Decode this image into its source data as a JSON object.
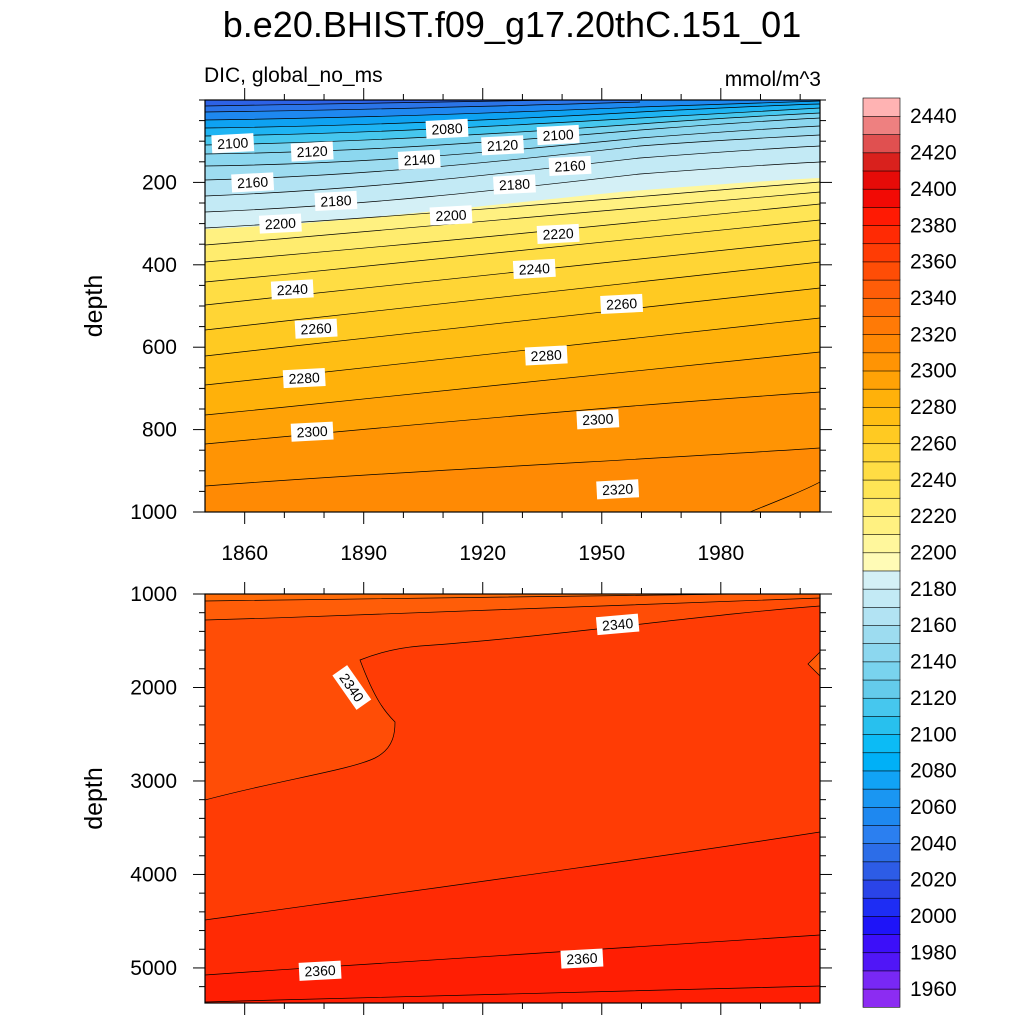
{
  "chart_data": {
    "type": "contour",
    "title": "b.e20.BHIST.f09_g17.20thC.151_01",
    "variable_label": "DIC, global_no_ms",
    "units": "mmol/m^3",
    "x_ticks": [
      1860,
      1890,
      1920,
      1950,
      1980
    ],
    "xlim": [
      1850,
      2005
    ],
    "colorbar": {
      "levels": [
        1960,
        1970,
        1980,
        1990,
        2000,
        2010,
        2020,
        2030,
        2040,
        2050,
        2060,
        2070,
        2080,
        2090,
        2100,
        2110,
        2120,
        2130,
        2140,
        2150,
        2160,
        2170,
        2180,
        2190,
        2200,
        2210,
        2220,
        2230,
        2240,
        2250,
        2260,
        2270,
        2280,
        2290,
        2300,
        2310,
        2320,
        2330,
        2340,
        2350,
        2360,
        2370,
        2380,
        2390,
        2400,
        2410,
        2420,
        2430,
        2440,
        2450
      ],
      "tick_labels": [
        "1960",
        "1980",
        "2000",
        "2020",
        "2040",
        "2060",
        "2080",
        "2100",
        "2120",
        "2140",
        "2160",
        "2180",
        "2200",
        "2220",
        "2240",
        "2260",
        "2280",
        "2300",
        "2320",
        "2340",
        "2360",
        "2380",
        "2400",
        "2420",
        "2440"
      ],
      "colors": [
        "#8c2cf2",
        "#7828f5",
        "#5016f7",
        "#3c0ff9",
        "#1e14f8",
        "#1e2df4",
        "#2a44e8",
        "#2d5ce6",
        "#2c6de8",
        "#2b7ff0",
        "#1e88f0",
        "#1a96f2",
        "#11a3f5",
        "#00b0f7",
        "#0cbbf5",
        "#28c0ee",
        "#46c7ee",
        "#64cbeb",
        "#79d3ee",
        "#8cd7ef",
        "#9ddcf0",
        "#b2e3f3",
        "#c3eaf5",
        "#d4f0f6",
        "#fffbb6",
        "#fff79c",
        "#fff181",
        "#ffec6e",
        "#ffe555",
        "#ffdd44",
        "#ffd535",
        "#ffca22",
        "#ffbe14",
        "#ffb10a",
        "#ffa206",
        "#ff9404",
        "#ff8704",
        "#ff7a06",
        "#ff6c08",
        "#ff5d08",
        "#ff4d06",
        "#ff3c05",
        "#ff2a04",
        "#ff1a03",
        "#f20a05",
        "#e60b08",
        "#d9211d",
        "#e05050",
        "#ee8080",
        "#ffb3b3"
      ]
    },
    "panels": [
      {
        "name": "upper",
        "y_label": "depth",
        "y_ticks": [
          200,
          400,
          600,
          800,
          1000
        ],
        "ylim": [
          0,
          1000
        ],
        "y_reversed": true,
        "contour_labels": [
          {
            "text": "2080",
            "year": 1911,
            "depth": 70
          },
          {
            "text": "2100",
            "year": 1857,
            "depth": 105
          },
          {
            "text": "2100",
            "year": 1939,
            "depth": 85
          },
          {
            "text": "2120",
            "year": 1877,
            "depth": 125
          },
          {
            "text": "2120",
            "year": 1925,
            "depth": 110
          },
          {
            "text": "2140",
            "year": 1904,
            "depth": 145
          },
          {
            "text": "2160",
            "year": 1862,
            "depth": 200
          },
          {
            "text": "2160",
            "year": 1942,
            "depth": 160
          },
          {
            "text": "2180",
            "year": 1883,
            "depth": 245
          },
          {
            "text": "2180",
            "year": 1928,
            "depth": 205
          },
          {
            "text": "2200",
            "year": 1869,
            "depth": 300
          },
          {
            "text": "2200",
            "year": 1912,
            "depth": 280
          },
          {
            "text": "2220",
            "year": 1939,
            "depth": 325
          },
          {
            "text": "2240",
            "year": 1872,
            "depth": 460
          },
          {
            "text": "2240",
            "year": 1933,
            "depth": 410
          },
          {
            "text": "2260",
            "year": 1878,
            "depth": 555
          },
          {
            "text": "2260",
            "year": 1955,
            "depth": 495
          },
          {
            "text": "2280",
            "year": 1875,
            "depth": 675
          },
          {
            "text": "2280",
            "year": 1936,
            "depth": 620
          },
          {
            "text": "2300",
            "year": 1877,
            "depth": 805
          },
          {
            "text": "2300",
            "year": 1949,
            "depth": 775
          },
          {
            "text": "2320",
            "year": 1954,
            "depth": 945
          }
        ]
      },
      {
        "name": "lower",
        "y_label": "depth",
        "y_ticks": [
          1000,
          2000,
          3000,
          4000,
          5000
        ],
        "ylim": [
          1000,
          5375
        ],
        "y_reversed": true,
        "contour_labels": [
          {
            "text": "2340",
            "year": 1954,
            "depth": 1325,
            "angle": -5
          },
          {
            "text": "2340",
            "year": 1887,
            "depth": 2000,
            "angle": 55
          },
          {
            "text": "2360",
            "year": 1879,
            "depth": 5030,
            "angle": -3
          },
          {
            "text": "2360",
            "year": 1945,
            "depth": 4900,
            "angle": -3
          }
        ]
      }
    ]
  }
}
